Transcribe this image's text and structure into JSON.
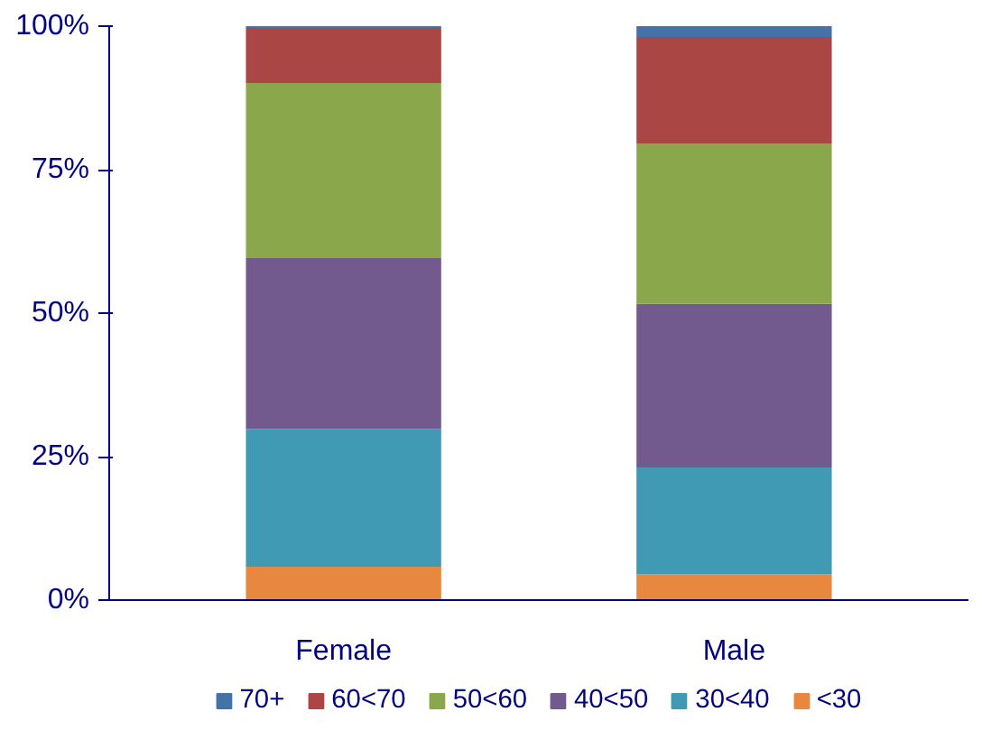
{
  "chart_data": {
    "type": "bar",
    "stacked": true,
    "categories": [
      "Female",
      "Male"
    ],
    "series": [
      {
        "name": "<30",
        "color": "#e8873e",
        "values": [
          5.8,
          4.5
        ]
      },
      {
        "name": "30<40",
        "color": "#419ab4",
        "values": [
          24,
          18.6
        ]
      },
      {
        "name": "40<50",
        "color": "#725a8f",
        "values": [
          29.8,
          28.5
        ]
      },
      {
        "name": "50<60",
        "color": "#8aa84b",
        "values": [
          30.5,
          27.9
        ]
      },
      {
        "name": "60<70",
        "color": "#aa4643",
        "values": [
          9.6,
          18.6
        ]
      },
      {
        "name": "70+",
        "color": "#4572a7",
        "values": [
          0.3,
          1.9
        ]
      }
    ],
    "ylim": [
      0,
      100
    ],
    "yticks": [
      {
        "value": 0,
        "label": "0%"
      },
      {
        "value": 25,
        "label": "25%"
      },
      {
        "value": 50,
        "label": "50%"
      },
      {
        "value": 75,
        "label": "75%"
      },
      {
        "value": 100,
        "label": "100%"
      }
    ],
    "grid": false,
    "legend": "bottom"
  }
}
